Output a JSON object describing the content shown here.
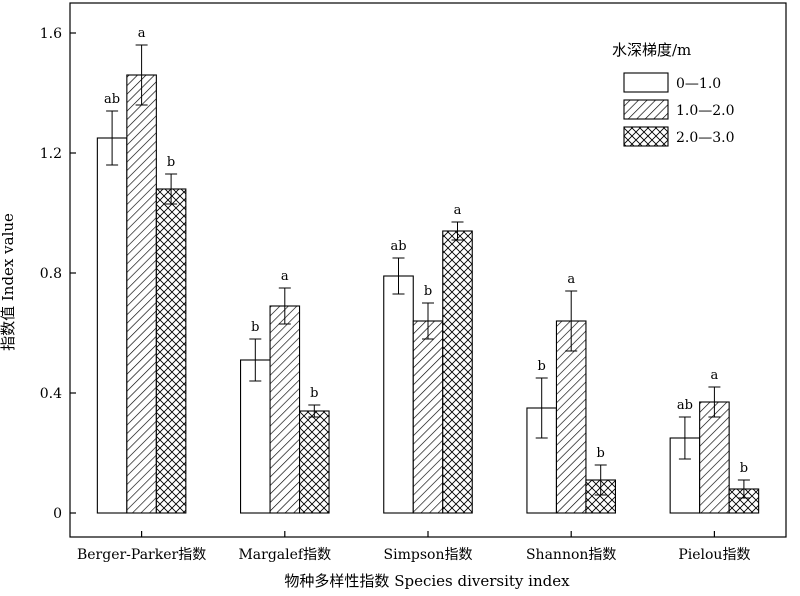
{
  "chart_data": {
    "type": "bar",
    "xlabel": "物种多样性指数 Species diversity index",
    "ylabel": "指数值 Index value",
    "ylim": [
      -0.08,
      1.7
    ],
    "yticks": [
      "0",
      "0.4",
      "0.8",
      "1.2",
      "1.6"
    ],
    "ytick_values": [
      0,
      0.4,
      0.8,
      1.2,
      1.6
    ],
    "categories": [
      "Berger-Parker指数",
      "Margalef指数",
      "Simpson指数",
      "Shannon指数",
      "Pielou指数"
    ],
    "legend": {
      "title": "水深梯度/m",
      "position": "top-right"
    },
    "grid": false,
    "series": [
      {
        "name": "0—1.0",
        "pattern": "none",
        "values": [
          1.25,
          0.51,
          0.79,
          0.35,
          0.25
        ],
        "errors": [
          0.09,
          0.07,
          0.06,
          0.1,
          0.07
        ],
        "labels": [
          "ab",
          "b",
          "ab",
          "b",
          "ab"
        ]
      },
      {
        "name": "1.0—2.0",
        "pattern": "diagonal",
        "values": [
          1.46,
          0.69,
          0.64,
          0.64,
          0.37
        ],
        "errors": [
          0.1,
          0.06,
          0.06,
          0.1,
          0.05
        ],
        "labels": [
          "a",
          "a",
          "b",
          "a",
          "a"
        ]
      },
      {
        "name": "2.0—3.0",
        "pattern": "crosshatch",
        "values": [
          1.08,
          0.34,
          0.94,
          0.11,
          0.08
        ],
        "errors": [
          0.05,
          0.02,
          0.03,
          0.05,
          0.03
        ],
        "labels": [
          "b",
          "b",
          "a",
          "b",
          "b"
        ]
      }
    ]
  }
}
